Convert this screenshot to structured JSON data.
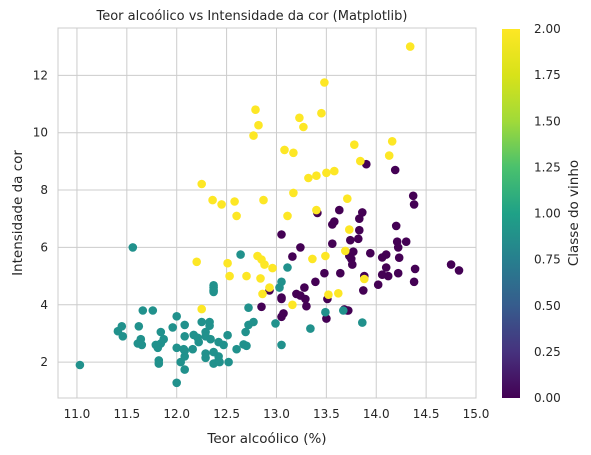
{
  "chart_data": {
    "type": "scatter",
    "title": "Teor alcoólico vs Intensidade da cor (Matplotlib)",
    "xlabel": "Teor alcoólico (%)",
    "ylabel": "Intensidade da cor",
    "xlim": [
      10.81,
      15.0
    ],
    "ylim": [
      0.75,
      13.65
    ],
    "xticks": [
      "11.0",
      "11.5",
      "12.0",
      "12.5",
      "13.0",
      "13.5",
      "14.0",
      "14.5",
      "15.0"
    ],
    "yticks": [
      "2",
      "4",
      "6",
      "8",
      "10",
      "12"
    ],
    "grid": true,
    "colormap": "viridis",
    "colorbar": {
      "label": "Classe do vinho",
      "range": [
        0,
        2
      ],
      "ticks": [
        "0.00",
        "0.25",
        "0.50",
        "0.75",
        "1.00",
        "1.25",
        "1.50",
        "1.75",
        "2.00"
      ]
    },
    "colors": {
      "class_0": "#440154",
      "class_1": "#21918c",
      "class_2": "#fde725"
    },
    "series": [
      {
        "class": 0,
        "x": [
          14.23,
          13.2,
          13.16,
          14.37,
          13.24,
          14.2,
          14.39,
          14.06,
          14.83,
          13.86,
          14.1,
          14.12,
          13.75,
          14.75,
          14.38,
          13.63,
          14.3,
          13.83,
          14.19,
          13.64,
          14.06,
          12.93,
          13.71,
          12.85,
          13.5,
          13.05,
          13.39,
          13.3,
          13.87,
          14.02,
          13.73,
          13.58,
          13.68,
          13.76,
          13.51,
          13.48,
          13.28,
          13.05,
          13.07,
          14.22,
          13.56,
          13.41,
          13.88,
          13.24,
          13.05,
          14.21,
          14.38,
          13.9,
          14.1,
          13.94,
          13.05,
          13.83,
          13.82,
          13.77,
          13.74,
          13.56,
          14.22,
          13.29,
          13.72
        ],
        "y": [
          5.64,
          4.38,
          5.68,
          7.8,
          4.32,
          6.75,
          5.25,
          5.05,
          5.2,
          7.22,
          5.75,
          5.0,
          5.6,
          5.4,
          7.5,
          7.3,
          6.2,
          6.6,
          8.7,
          5.1,
          5.65,
          4.5,
          3.8,
          3.93,
          3.52,
          3.58,
          4.8,
          3.95,
          4.5,
          4.7,
          5.7,
          6.9,
          3.84,
          5.4,
          4.2,
          5.1,
          4.6,
          4.25,
          3.7,
          5.1,
          6.13,
          7.2,
          5.0,
          6.0,
          4.2,
          6.2,
          4.8,
          8.9,
          5.3,
          5.8,
          6.45,
          7.0,
          6.3,
          5.85,
          6.25,
          6.8,
          6.0,
          4.2,
          3.8
        ]
      },
      {
        "class": 1,
        "x": [
          12.37,
          12.33,
          12.64,
          13.67,
          12.37,
          12.17,
          12.37,
          13.11,
          12.37,
          13.34,
          12.21,
          12.29,
          13.86,
          13.49,
          12.99,
          11.96,
          11.66,
          13.03,
          11.84,
          12.33,
          12.7,
          12.0,
          12.72,
          12.08,
          13.05,
          11.84,
          12.67,
          12.16,
          11.65,
          11.64,
          12.08,
          12.08,
          12.0,
          12.69,
          12.29,
          11.62,
          12.47,
          11.81,
          12.29,
          12.37,
          12.29,
          12.08,
          12.6,
          12.34,
          11.82,
          12.51,
          12.42,
          12.25,
          12.72,
          12.22,
          11.61,
          11.46,
          12.52,
          11.76,
          11.41,
          12.08,
          11.03,
          11.82,
          12.42,
          12.77,
          12.0,
          11.45,
          11.56,
          12.42,
          13.05,
          11.87,
          12.07,
          12.43,
          11.79,
          12.37,
          12.04
        ],
        "y": [
          1.95,
          3.27,
          5.75,
          3.8,
          4.45,
          2.95,
          4.6,
          5.3,
          4.68,
          3.17,
          2.85,
          3.05,
          3.38,
          3.74,
          3.35,
          3.21,
          3.8,
          4.6,
          2.65,
          3.4,
          2.57,
          2.5,
          3.9,
          2.2,
          4.8,
          3.05,
          2.62,
          2.45,
          2.6,
          2.8,
          1.74,
          2.4,
          3.6,
          3.05,
          2.15,
          3.25,
          2.6,
          2.5,
          2.9,
          4.5,
          2.3,
          3.3,
          2.45,
          2.8,
          2.06,
          2.94,
          2.7,
          3.4,
          3.3,
          2.7,
          2.65,
          2.9,
          2.0,
          3.8,
          3.08,
          2.9,
          1.9,
          1.95,
          2.06,
          3.4,
          1.28,
          3.25,
          6.0,
          2.2,
          2.6,
          2.8,
          2.45,
          2.0,
          2.6,
          2.35,
          2.0
        ]
      },
      {
        "class": 2,
        "x": [
          12.86,
          12.88,
          12.81,
          12.7,
          12.51,
          12.6,
          12.25,
          12.53,
          13.49,
          12.84,
          12.93,
          13.36,
          13.52,
          13.62,
          12.25,
          13.16,
          13.88,
          12.87,
          13.32,
          13.08,
          13.5,
          12.79,
          13.11,
          13.23,
          12.58,
          13.17,
          13.84,
          12.45,
          14.34,
          13.48,
          12.36,
          13.69,
          12.85,
          12.96,
          13.78,
          13.73,
          13.45,
          12.82,
          13.58,
          13.4,
          12.2,
          12.77,
          14.16,
          13.71,
          13.4,
          13.27,
          13.17,
          14.13
        ],
        "y": [
          4.38,
          5.4,
          5.7,
          5.0,
          5.45,
          7.1,
          3.85,
          5.0,
          5.7,
          4.92,
          4.6,
          5.6,
          4.35,
          4.4,
          8.21,
          4.0,
          4.9,
          7.65,
          8.42,
          9.4,
          8.6,
          10.8,
          7.1,
          10.52,
          7.6,
          7.9,
          9.01,
          7.5,
          13.0,
          11.75,
          7.65,
          5.88,
          5.58,
          5.28,
          9.58,
          6.62,
          10.68,
          10.26,
          8.66,
          8.5,
          5.5,
          9.899999,
          9.7,
          7.7,
          7.3,
          10.2,
          9.3,
          9.2
        ]
      }
    ]
  }
}
